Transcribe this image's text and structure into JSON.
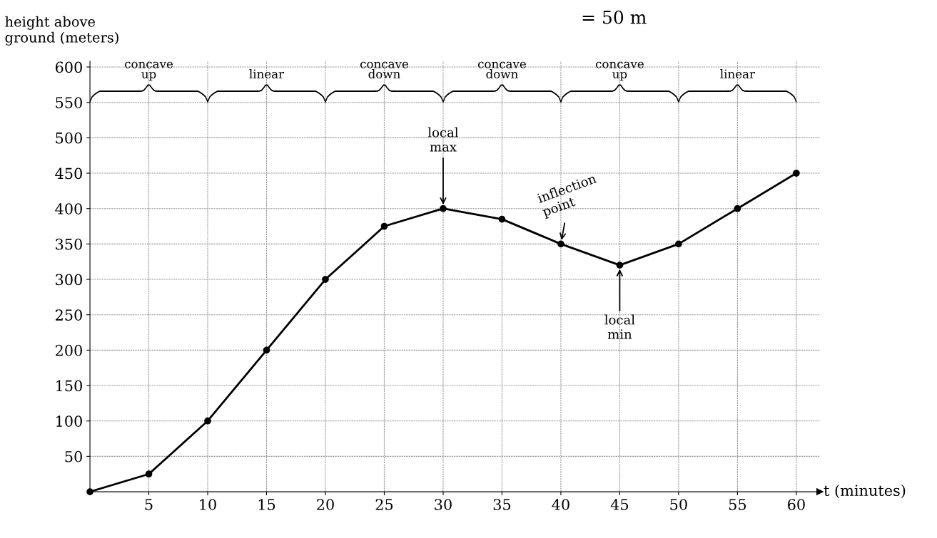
{
  "chart_data": {
    "type": "line",
    "xlabel": "t (minutes)",
    "ylabel": "height above\nground (meters)",
    "x": [
      0,
      5,
      10,
      15,
      20,
      25,
      30,
      35,
      40,
      45,
      50,
      55,
      60
    ],
    "series": [
      {
        "color": "#000000",
        "values": [
          0,
          25,
          100,
          200,
          300,
          375,
          400,
          385,
          350,
          320,
          350,
          400,
          450
        ]
      }
    ],
    "xlim": [
      0,
      62
    ],
    "ylim": [
      0,
      608
    ],
    "xticks": [
      5,
      10,
      15,
      20,
      25,
      30,
      35,
      40,
      45,
      50,
      55,
      60
    ],
    "yticks": [
      50,
      100,
      150,
      200,
      250,
      300,
      350,
      400,
      450,
      500,
      550,
      600
    ],
    "grid": true,
    "marker": "circle",
    "line_style": "solid",
    "annotations": [
      {
        "text": "local\nmax",
        "x": 30,
        "y": 400
      },
      {
        "text": "inflection\npoint",
        "x": 40,
        "y": 350
      },
      {
        "text": "local\nmin",
        "x": 45,
        "y": 320
      },
      "= 50 m",
      "concave\nup",
      "linear",
      "concave\ndown",
      "concave\ndown",
      "concave\nup",
      "linear"
    ]
  }
}
